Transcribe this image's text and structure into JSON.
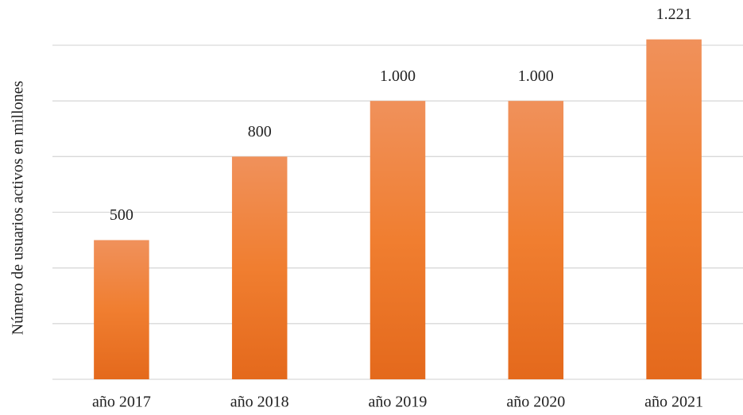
{
  "chart_data": {
    "type": "bar",
    "y_label": "Número de usuarios activos en millones",
    "categories": [
      "año 2017",
      "año 2018",
      "año 2019",
      "año 2020",
      "año 2021"
    ],
    "values": [
      500,
      800,
      1000,
      1000,
      1221
    ],
    "value_labels": [
      "500",
      "800",
      "1.000",
      "1.000",
      "1.221"
    ],
    "color": "#ed7d31",
    "ylim": [
      0,
      1200
    ],
    "yticks": [
      0,
      200,
      400,
      600,
      800,
      1000,
      1200
    ],
    "grid": true
  }
}
